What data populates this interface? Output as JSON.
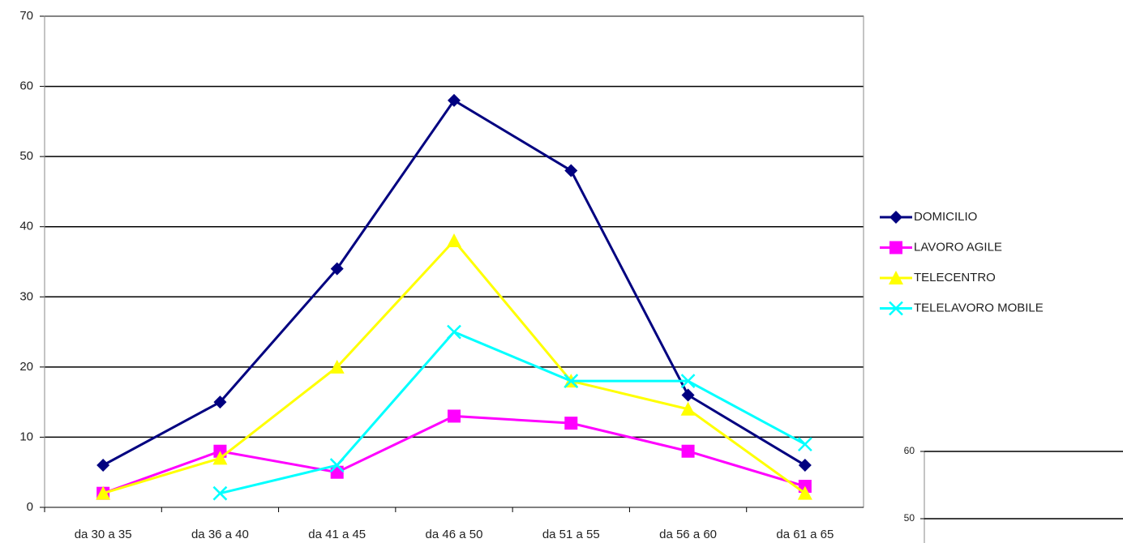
{
  "chart_data": [
    {
      "type": "line",
      "categories": [
        "da 30 a 35",
        "da 36 a 40",
        "da 41 a 45",
        "da 46 a 50",
        "da 51 a 55",
        "da 56 a 60",
        "da 61 a 65"
      ],
      "series": [
        {
          "name": "DOMICILIO",
          "color": "#000080",
          "marker": "diamond",
          "values": [
            6,
            15,
            34,
            58,
            48,
            16,
            6
          ]
        },
        {
          "name": "LAVORO AGILE",
          "color": "#ff00ff",
          "marker": "square",
          "values": [
            2,
            8,
            5,
            13,
            12,
            8,
            3
          ]
        },
        {
          "name": "TELECENTRO",
          "color": "#ffff00",
          "marker": "triangle",
          "values": [
            2,
            7,
            20,
            38,
            18,
            14,
            2
          ]
        },
        {
          "name": "TELELAVORO MOBILE",
          "color": "#00ffff",
          "marker": "x",
          "values": [
            null,
            2,
            6,
            25,
            18,
            18,
            9
          ]
        }
      ],
      "ylim": [
        0,
        70
      ],
      "yticks": [
        0,
        10,
        20,
        30,
        40,
        50,
        60,
        70
      ],
      "grid": true,
      "legend": "right"
    },
    {
      "type": "line",
      "ylim": [
        50,
        60
      ],
      "yticks": [
        50,
        60
      ],
      "grid": true
    }
  ]
}
